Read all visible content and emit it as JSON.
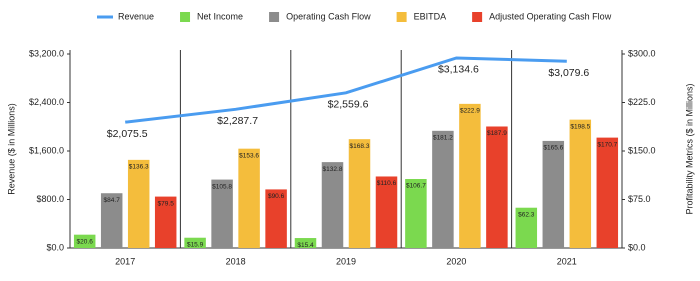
{
  "chart_data": {
    "type": "combo",
    "y_label": "Revenue ($ in Millions)",
    "y2_label": "Profitability Metrics ($ in Millions)",
    "categories": [
      "2017",
      "2018",
      "2019",
      "2020",
      "2021"
    ],
    "ylim": [
      0,
      3200
    ],
    "yticks": [
      {
        "value": 0,
        "label": "$0.0"
      },
      {
        "value": 800,
        "label": "$800.0"
      },
      {
        "value": 1600,
        "label": "$1,600.0"
      },
      {
        "value": 2400,
        "label": "$2,400.0"
      },
      {
        "value": 3200,
        "label": "$3,200.0"
      }
    ],
    "y2lim": [
      0,
      300
    ],
    "y2ticks": [
      {
        "value": 0,
        "label": "$0.0"
      },
      {
        "value": 75,
        "label": "$75.0"
      },
      {
        "value": 150,
        "label": "$150.0"
      },
      {
        "value": 225,
        "label": "$225.0"
      },
      {
        "value": 300,
        "label": "$300.0"
      }
    ],
    "series": [
      {
        "name": "Revenue",
        "type": "line",
        "color": "#4a9cf0",
        "values": [
          2075.5,
          2287.7,
          2559.6,
          3134.6,
          3079.6
        ],
        "value_labels": [
          "$2,075.5",
          "$2,287.7",
          "$2,559.6",
          "$3,134.6",
          "$3,079.6"
        ]
      },
      {
        "name": "Net Income",
        "type": "bar",
        "axis": "y2",
        "color": "#7bd94f",
        "values": [
          20.6,
          15.9,
          15.4,
          106.7,
          62.3
        ],
        "value_labels": [
          "$20.6",
          "$15.9",
          "$15.4",
          "$106.7",
          "$62.3"
        ]
      },
      {
        "name": "Operating Cash Flow",
        "type": "bar",
        "axis": "y2",
        "color": "#8c8c8c",
        "values": [
          84.7,
          105.8,
          132.8,
          181.2,
          165.6
        ],
        "value_labels": [
          "$84.7",
          "$105.8",
          "$132.8",
          "$181.2",
          "$165.6"
        ]
      },
      {
        "name": "EBITDA",
        "type": "bar",
        "axis": "y2",
        "color": "#f4bd3c",
        "values": [
          136.3,
          153.6,
          168.3,
          222.9,
          198.5
        ],
        "value_labels": [
          "$136.3",
          "$153.6",
          "$168.3",
          "$222.9",
          "$198.5"
        ]
      },
      {
        "name": "Adjusted Operating Cash Flow",
        "type": "bar",
        "axis": "y2",
        "color": "#e8412b",
        "values": [
          79.5,
          90.6,
          110.6,
          187.9,
          170.7
        ],
        "value_labels": [
          "$79.5",
          "$90.6",
          "$110.6",
          "$187.9",
          "$170.7"
        ]
      }
    ]
  }
}
